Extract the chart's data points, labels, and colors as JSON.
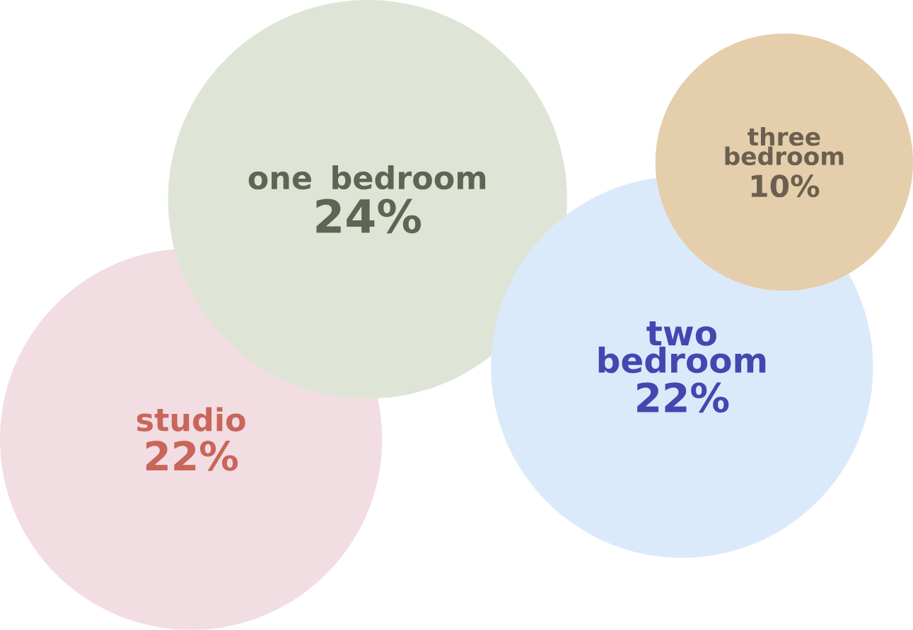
{
  "chart_data": {
    "type": "other",
    "categories": [
      "studio",
      "one bedroom",
      "two bedroom",
      "three bedroom"
    ],
    "values": [
      22,
      24,
      22,
      10
    ],
    "value_labels": [
      "22%",
      "24%",
      "22%",
      "10%"
    ],
    "colors": [
      "#f2dde3",
      "#dfe5d6",
      "#dbeafa",
      "#e5ceab"
    ]
  }
}
